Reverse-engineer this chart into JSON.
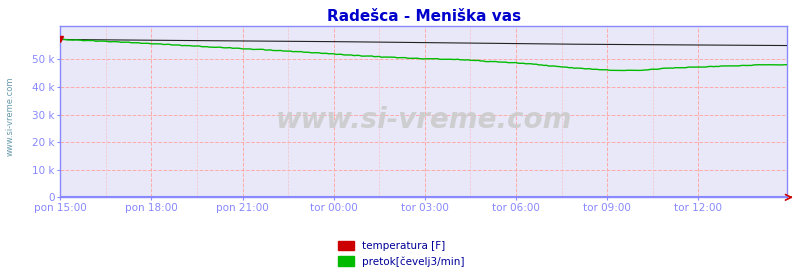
{
  "title": "Radešca - Meniška vas",
  "title_color": "#0000cc",
  "background_color": "#ffffff",
  "plot_bg_color": "#e8e8f8",
  "grid_color_h": "#ffaaaa",
  "grid_color_v": "#ffaaaa",
  "watermark": "www.si-vreme.com",
  "axis_color": "#8888ff",
  "tick_label_color": "#000099",
  "legend_labels": [
    "temperatura [F]",
    "pretok[čevelj3/min]"
  ],
  "legend_colors": [
    "#cc0000",
    "#00bb00"
  ],
  "x_tick_labels": [
    "pon 15:00",
    "pon 18:00",
    "pon 21:00",
    "tor 00:00",
    "tor 03:00",
    "tor 06:00",
    "tor 09:00",
    "tor 12:00"
  ],
  "y_tick_labels": [
    "0",
    "10 k",
    "20 k",
    "30 k",
    "40 k",
    "50 k"
  ],
  "y_tick_values": [
    0,
    10000,
    20000,
    30000,
    40000,
    50000
  ],
  "ylim": [
    0,
    62000
  ],
  "n_points": 288,
  "sidebar_text": "www.si-vreme.com",
  "sidebar_color": "#6699aa",
  "arrow_color": "#cc0000"
}
